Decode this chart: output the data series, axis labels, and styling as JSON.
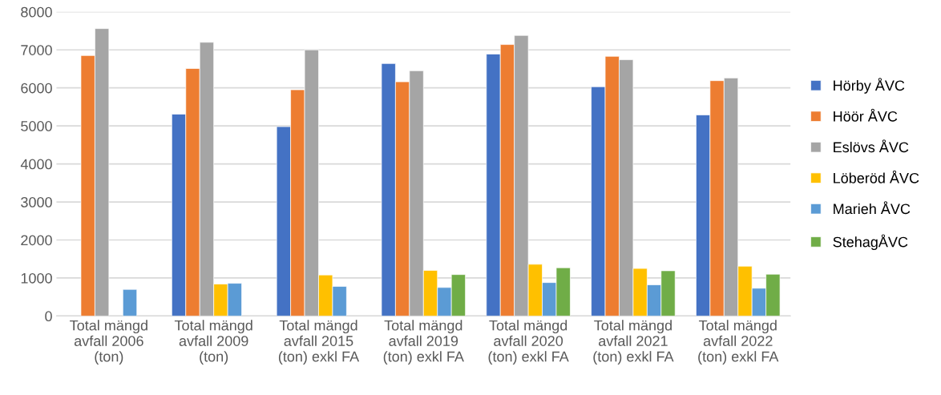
{
  "chart_data": {
    "type": "bar",
    "categories": [
      "Total mängd\navfall 2006\n(ton)",
      "Total mängd\navfall 2009\n(ton)",
      "Total mängd\navfall 2015\n(ton) exkl FA",
      "Total mängd\navfall 2019\n(ton) exkl FA",
      "Total mängd\navfall 2020\n(ton) exkl FA",
      "Total mängd\navfall 2021\n(ton) exkl FA",
      "Total mängd\navfall 2022\n(ton) exkl FA"
    ],
    "series": [
      {
        "name": "Hörby ÅVC",
        "color": "#4472c4",
        "values": [
          null,
          5310,
          4980,
          6640,
          6890,
          6030,
          5290
        ]
      },
      {
        "name": "Höör ÅVC",
        "color": "#ed7d31",
        "values": [
          6850,
          6510,
          5950,
          6160,
          7140,
          6830,
          6190
        ]
      },
      {
        "name": "Eslövs ÅVC",
        "color": "#a5a5a5",
        "values": [
          7560,
          7200,
          7000,
          6450,
          7380,
          6740,
          6260
        ]
      },
      {
        "name": "Löberöd ÅVC",
        "color": "#ffc000",
        "values": [
          null,
          840,
          1080,
          1200,
          1360,
          1250,
          1310
        ]
      },
      {
        "name": "Marieh ÅVC",
        "color": "#5b9bd5",
        "values": [
          700,
          860,
          780,
          750,
          880,
          820,
          730
        ]
      },
      {
        "name": "StehagÅVC",
        "color": "#70ad47",
        "values": [
          null,
          null,
          null,
          1090,
          1270,
          1190,
          1100
        ]
      }
    ],
    "ylim": [
      0,
      8000
    ],
    "yticks": [
      0,
      1000,
      2000,
      3000,
      4000,
      5000,
      6000,
      7000,
      8000
    ],
    "grid": "y",
    "legend": "right"
  }
}
